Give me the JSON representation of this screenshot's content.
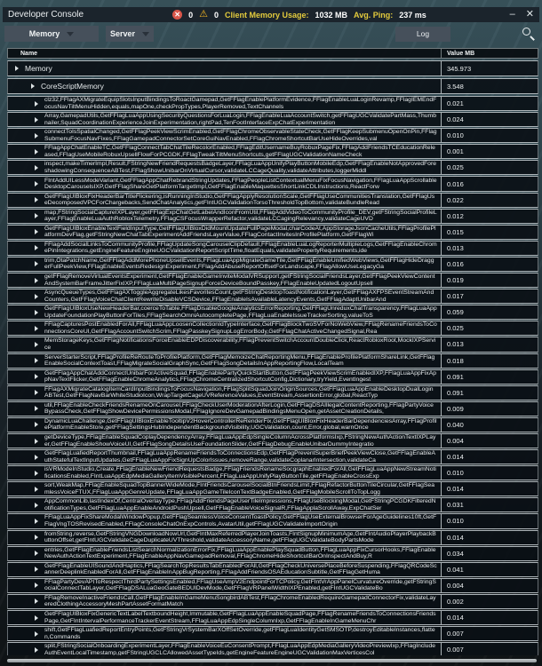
{
  "window": {
    "title": "Developer Console",
    "minimize_icon": "–",
    "close_icon": "✕"
  },
  "status_bar": {
    "error_icon": "✕",
    "error_count": "0",
    "warning_icon": "⚠",
    "warning_count": "0",
    "memory_label": "Client Memory Usage:",
    "memory_value": "1032 MB",
    "ping_label": "Avg. Ping:",
    "ping_value": "237 ms"
  },
  "toolbar": {
    "memory_dropdown": "Memory",
    "server_dropdown": "Server",
    "log_button": "Log"
  },
  "colors": {
    "accent_yellow": "#e3cb3d",
    "error_red": "#d9564a",
    "warning_yellow": "#f2b321",
    "background_teal": "#30474f",
    "row_dark": "#0a1015"
  },
  "table": {
    "columns": [
      "Name",
      "Value MB"
    ],
    "rows": [
      {
        "level": 1,
        "name": "Memory",
        "value": "345.973"
      },
      {
        "level": 2,
        "name": "CoreScriptMemory",
        "value": "3.548"
      },
      {
        "level": 3,
        "name": "clz32,FFlagAXMigrateEquipSlotsInputBindingsToRoactGamepad,GetFFlagEnablePlatformEvidence,FFlagEnableLuaLoginRevamp,FFlagIEMEndFocusNavTiltMenuHidden,equals,mapOne,checkPropTypes,PlayerRemoved,TextChannels",
        "value": "0.021"
      },
      {
        "level": 3,
        "name": "Array,GamepadUtils,GetFFlagLuaAppUsingSecurityQuestionsForLuaLogin,FFlagEnableLuaAccountSwitch,getFFlagUGCValidatePartMass,Thumbnailer,SquadCoordinationExperienceJoinExperimentation,rightPad,TenFootInterfaceExpChatExperimentation",
        "value": "0.024"
      },
      {
        "level": 3,
        "name": "connectToIsSpatialChanged,GetFFlagPeekViewScrimEnabled,GetFFlagChromeObservableStateCheck,GetFFlagKeepSubmenuOpenOnPin,FFlagSubmenuFocusNavFixes,FFlagGamepadConnectorSetCoreGuiNavEnabled,FFlagChromeShortcutBarUseHideOverrides,val",
        "value": "0.010"
      },
      {
        "level": 3,
        "name": "FFlagAppChatEnableTC,GetFFlagConnectTabChatTileRecolorEnabled,FFlagEditUsernameBuyRobuxPageFix,FFlagAddFriendsTCEducationReleased,FFlagUseMobileRobuxUpsellFlowForPCGDK,FFlagTweakTiltMenuShortcuts,getFFlagUGCValidationNameCheck",
        "value": "0.001"
      },
      {
        "level": 3,
        "name": "inspect,makeTimerImpl,Result,FStringNewFriendRequestsBadgeLayer,FFlagLuaAppUnifyPlayButtonMobileEdp,GetFFlagEnableNotApprovedForeshadowingConsequenceABTest,FFlagShowUnibarOnVirtualCursor,validateLCCageQuality,validateAttributes,loggerMiddl",
        "value": "0.025"
      },
      {
        "level": 3,
        "name": "FIntAddUILessModeVariant,GetFFlagAppChatRebrandStringUpdates,FFlagPeopleListContextualMenuFixFocusNavigation,FFlagLuaAppScrollableDesktopCarouselsIXP,GetFFlagShareGetPlatformTargetImpl,GetFFlagEnableMaquettesShortLinkCDLInstructions,ReactForw",
        "value": "0.016"
      },
      {
        "level": 3,
        "name": "GetFFlagUIBloxFixHeaderBarTitleFlickering,isRunningInStudio,GetFFlagApplyResolutionScale,GetFFlagUseCommunitiesTranslation,GetFFlagUseDecomposedVPCForChargebacks,SendChatAnalytics,getFIntUGCValidationTorsoThresholdTopBottom,validateBundleRead",
        "value": "0.022"
      },
      {
        "level": 3,
        "name": "map,FStringSocialCaptureIXPLayer,getFFlagExpChatGetLabelAndIconFromUtil,FFlagAddVideoToCommunityProfile_DEV,getFStringSocialProfileLayer,FFlagEnableLuaAuthRobloxTelemetry,FFlagCSFocusWrapperRefactor,validateLCCagingRelevancy,validateCageUVD",
        "value": "0.012"
      },
      {
        "level": 3,
        "name": "GetFFlagUIBloxEnableTextFieldInputType,GetFFlagUIBloxDidMountUpdateFullPageModal,charCodeAt,AppStorageJsonCacheUtils,FFlagProfilePlatformDevFlag,getFStringNewChatTabExperimentAddFriendsLayerValue,FFlagContactInvitesInProfilePlatform,GetFFlagWi",
        "value": "0.015"
      },
      {
        "level": 3,
        "name": "FFlagAddSocialLinksToCommunityProfile,FFlagUpdateSongCarouselClipDefault,FFlagEnableLuaLogReporterMultipleLogs,GetFFlagEnableChromePinIntegrations,getEngineFeatureEngineUGCValidationReportScriptTime,floatEquals,validatePropertyRequirements,ide",
        "value": "0.013"
      },
      {
        "level": 3,
        "name": "trim,OtaPatchName,GetFFlagAddMorePhoneUpsellEvents,FFlagLuaAppMigrateGameTile,GetFFlagEnableUnifiedWebViews,GetFFlagHideDraggerFullPeekView,FFlagEnableEventsRedesignExperiment,FFlagAddAbuseReportOffsetForLandscape,FFlagAllowUseLegacyGa",
        "value": "0.016"
      },
      {
        "level": 3,
        "name": "getFFlagRemoveVirtualEventsExperiment,GetFFlagEnableGameInviteModalVRSupport,getFStringSocialFriendsLayer,GetFFlagPeekViewContentAndSystemBarFrameJitterFixIXP,FFlagLuaMultiPageSignupForceDeviceBoundPasskey,FFlagEnableUpdatedLogoutUpsell",
        "value": "0.019"
      },
      {
        "level": 3,
        "name": "AsyncQueueTypes,GetFFlagAXToggleAggregateLikesFavoritesCount,getFStringDesktopToastNotificationLayer,GetFFlagAXFPSEventStreamAndCounters,GetFFlagVoiceChatClientRewriteDisableVCSDevice,FFlagEnableIsAvailableLatencyEvents,GetFFlagAdaptUnibarAnd",
        "value": "0.017"
      },
      {
        "level": 3,
        "name": "GetFFlagUIBloxUseNewHeaderBar,coerceToTable,FFlagDisableGoogleAnalyticsErrorReporting,GetFFlagUnreduxChatTransparency,FFlagLuaAppUpdateFoundationPlayButtonForTiles,FFlagSearchOmniAutocompletePage,FFlagLuaEnableIssueTrackerSorting,valueToS",
        "value": "0.059"
      },
      {
        "level": 3,
        "name": "FFlagCapturesPostEnabledForAll,FFlagLuaAppLoosenCollectionIdTypeInterface,GetFFlagBlockTwoSVForNoWebView,FFlagRenameFriendsToConnectionsCoreUI,GetFFlagAccountSwitchScrim,FFlagPasskeySignupLogErrorBody,GetFFlagChatActiveChangedSignal,Rea",
        "value": "0.025"
      },
      {
        "level": 3,
        "name": "MemStorageKeys,GetFFlagNotificationsForceEnableEDPDiscoverability,FFlagPreventSwitchAccountDoubleClick,ReactRobloxRoot,MockIXPService",
        "value": "0.013"
      },
      {
        "level": 3,
        "name": "ServerStarterScript,FFlagProfileReRouteToProfilePlatform,GetFFlagMemoizeChatReportingMenu,FFlagEnableProfilePlatformShareLink,GetFFlagEnableSocialContextToast,FFlagMigrateSocialGraphSync,GetFFlagSongDetailsInAppReportingFlow,LocalTeam",
        "value": "0.018"
      },
      {
        "level": 3,
        "name": "GetFFlagAppChatAddConnectUnibarForActiveSquad,FFlagEnablePartyQuickStartButton,GetFFlagPeekViewScrimEnabledIXP,FFlagLuaAppFixAppNavTextFlicker,GetFFlagEnableChromeAnalytics,FFlagChromeCentralizedShortcutConfig,Dictionary,tryYield,EventIngest",
        "value": "0.091"
      },
      {
        "level": 3,
        "name": "FFlagAXMigrateCatalogItemCardInputBindingsToFocusNavigation,FFlagSplitSquadJoinOriginSources,GetFFlagLuaAppEnableDesktopDualLoginABTest,GetFFlagNavBarWhiteStudioIcon,WrapTargetCageUVReferenceValues,EventStream,AssertionError,global,ReactTyp",
        "value": "0.091"
      },
      {
        "level": 3,
        "name": "util,FFlagEnableCheckFriendsRenameOnCarousel,FFlagCheckUserModerationAfterLogin,GetFFlagDSAIllegalContentReporting,FFlagPartyVoiceBypassCheck,GetFFlagShowDevicePermissionsModal,FFlagIgnoreDevGamepadBindingsMenuOpen,getAssetCreationDetails,",
        "value": "0.009"
      },
      {
        "level": 3,
        "name": "DynamicLuaChallenge,GetFFlagUIBloxEnableTooltipV2HoverControllerReRenderFix,GetFFlagUIBloxFixHeaderBarDependenciesArray,FFlagProfilePlatformEnableStore,getFFlagSettingsHubIndependentBackgroundVisibility,UGCValidation,count,Error,global,warnOnce",
        "value": "0.040"
      },
      {
        "level": 3,
        "name": "getDeviceType,FFlagEnableSquadCoplayDependencyArray,FFlagLuaAppEdpSingleColumnAcrossPlatformsIxp,FStringNewAuthActionTextIXPLayer,GetFFlagEnableShowVoiceUI,GetFFlagSongDetailsUseFoundationSlider,GetFFlagDebugEnableUnibarDummyIntegratio",
        "value": "0.004"
      },
      {
        "level": 3,
        "name": "GetFFlagLuafiedReportThumbnail,FFlagLuaAppRenameFriendsToConnectionsEdp,GetFFlagPreventSuperBriefPeekViewClose,GetFFlagEnableAuthStatefulTextInputUpdates,GetFFlagLuaAppFixSignUpColorIssues,removeRange,validateCoplanarIntersection,validateCa",
        "value": "0.014"
      },
      {
        "level": 3,
        "name": "isVRModeInStudio,Create,FFlagEnableNewFriendRequestsBadge,FFlagFriendsRenameSocgraphEnabledForAll,GetFFlagLuaAppNewStreamNotificationsEnabled,FIntLuaAppEdpMediaGalleryItemVisiblePercent,FFlagLuaAppUnifyPlayButtonTile,getFFlagEnableCrossExp",
        "value": "0.010"
      },
      {
        "level": 3,
        "name": "sort,WeakMap,FFlagEnableSquadTopBannerWideMode,FIntFriendsCarouselSocialBtnFriendsLimit,FFlagRefactorButtonTileCircular,GetFFlagSeamlessVoiceFTUX,FFlagLuaAppGenreUpdate,FFlagLuaAppGameTileIconTextBadgeEnabled,GetFFlagMobileScrollToTopLogg",
        "value": "0.014"
      },
      {
        "level": 3,
        "name": "AppCommonLib,lastIndexOf,CentralOverlayType,FFlagAddFriendsPageUserTileImpressions,FFlagUseBlockingModal,GetFStringPCGDKFilteredNotificationTypes,GetFFlagLuaAppEnableAndroidPushUpsell,GetFFlagEnableVoiceSignalR,FFlagApplaScrollAway,ExpChatSer",
        "value": "0.031"
      },
      {
        "level": 3,
        "name": "FFlagLuaAppFixShareModalWindowPopup,GetFFlagSeamlessVoiceConsentToastPolicy,GetFFlagUseExternalBrowserForAgeGuidelines10ft,GetFFlagVngTOSRevisedEnabled,FFlagConsoleChatOnExpControls,AvatarUtil,getFFlagUGCValidateImportOrigin",
        "value": "0.010"
      },
      {
        "level": 3,
        "name": "fromString,reverse,GetFStringVNGDownloadNowUrl,GetFIntMaxReferredPlayerJoinToasts,FIntSignupMinimumAge,GetFIntAudioPlayerPlaybackButtonOffset,getFIntUGCValidateCageDuplicateUVThreshold,validateAccessoryName,getFFlagUGCValidateBodyPartsMode",
        "value": "0.014"
      },
      {
        "level": 3,
        "name": "entries,GetFFlagEnableFriendsListSearchNormalizationErrorFix,FFlagLuaAppEnablePlaySquadButton,FFlagLuaAppFixCursorHooks,FFlagEnableNewAuthActionTextExperiment,FFlagEnableAppNavGamepadRemoval,FFlagChromeHideShortcutBarOnInspectAndBuy,R",
        "value": "0.034"
      },
      {
        "level": 3,
        "name": "GetFFlagEnableUISoundAndHaptics,FFlagSearchTopResultsTabEnabledForAll,GetFFlagCheckUniversePlaceBeforeSuspending,FFlagQRCodeScannerDeeplinkEnabledForAll,GetFFlagEnableInAppBugReporting,FFlagAddFriendsOSAEducationSubtitle,GetFFlagGetHuma",
        "value": "0.041"
      },
      {
        "level": 3,
        "name": "FFlagPartyDevAPIToRespectThirdPartySettingsEnabled,FFlagUseAmpV2EndpointForTCPolicy,GetFIntVrAppPanelCurvatureOverride,getFStringSocialConnectTabLayer,GetFFlagDSALuaGeoGateBEDUIDevMode,GetFFlagVRPanelWidthIXPEnabled,getFIntUGCValidateBo",
        "value": "0.004"
      },
      {
        "level": 3,
        "name": "FFlagRemoveInactiveFriendsCall,GetFFlagEnableInGameMenuSongbirdABTest,FFlagChromeEnabledRequireGamepadConnectorFix,validateLayeredClothingAccessoryMeshPartAssetFormatMatch",
        "value": "0.002"
      },
      {
        "level": 3,
        "name": "GetFFlagUIBloxFixGenericTextLabelTextboundHeight,Immutable,GetFFlagLuaAppEnableSquadPage,FFlagRenameFriendsToConnectionsFriendsPage,GetFIntIntervalPerformanceTrackerEventStream,FFlagLuaAppEdpSingleColumnIxp,GetFFlagEnableInGameMenuChr",
        "value": "0.014"
      },
      {
        "level": 3,
        "name": "shift,GetFFlagLuafiedReportEntryPoints,GetFStringVrSystemBarXOffSetOverride,getFFlagLuaIdentityGetSMSOTP,destroyEditableInstances,flatten,Commands",
        "value": "0.007"
      },
      {
        "level": 3,
        "name": "split,FStringSocialOnboardingExperimentLayer,FFlagEnableVoiceEuConsentPrompt,FFlagLuaAppEdpMediaGalleryVideoPreviewIxp,FFlagIncludeAuthEventLocalTimestamp,getFStringUGCLCAllowedAssetTypeIds,getEngineFeatureEngineUGCValidationMaxVerticesCol",
        "value": "0.007"
      }
    ]
  }
}
